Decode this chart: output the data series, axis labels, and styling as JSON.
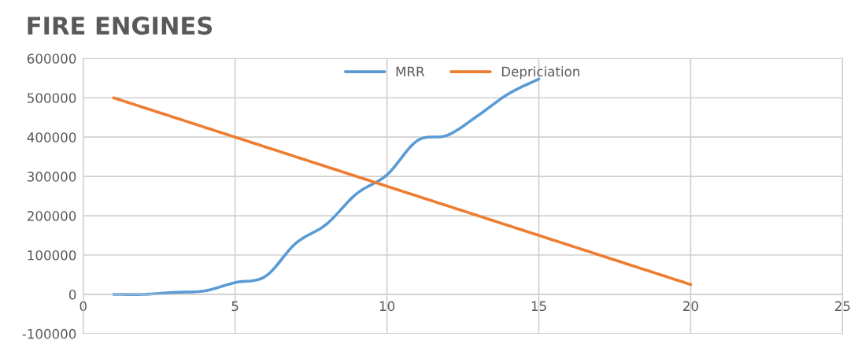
{
  "chart_data": {
    "type": "line",
    "title": "FIRE ENGINES",
    "x": [
      1,
      2,
      3,
      4,
      5,
      6,
      7,
      8,
      9,
      10,
      11,
      12,
      13,
      14,
      15,
      16,
      17,
      18,
      19,
      20
    ],
    "series": [
      {
        "name": "MRR",
        "color": "#5b9bd5",
        "x": [
          1,
          2,
          3,
          4,
          5,
          6,
          7,
          8,
          9,
          10,
          11,
          12,
          13,
          14,
          15
        ],
        "values": [
          0,
          0,
          5000,
          9000,
          30000,
          46000,
          130000,
          178000,
          256000,
          304000,
          391000,
          405000,
          455000,
          510000,
          548000
        ]
      },
      {
        "name": "Depriciation",
        "color": "#ed7d31",
        "values": [
          500000,
          475000,
          450000,
          425000,
          400000,
          375000,
          350000,
          325000,
          300000,
          275000,
          250000,
          225000,
          200000,
          175000,
          150000,
          125000,
          100000,
          75000,
          50000,
          25000
        ]
      }
    ],
    "xlim": [
      0,
      25
    ],
    "xticks": [
      0,
      5,
      10,
      15,
      20,
      25
    ],
    "ylim": [
      -100000,
      600000
    ],
    "yticks": [
      -100000,
      0,
      100000,
      200000,
      300000,
      400000,
      500000,
      600000
    ],
    "grid": true,
    "legend": "top",
    "marker": "none",
    "line_style": "solid"
  }
}
